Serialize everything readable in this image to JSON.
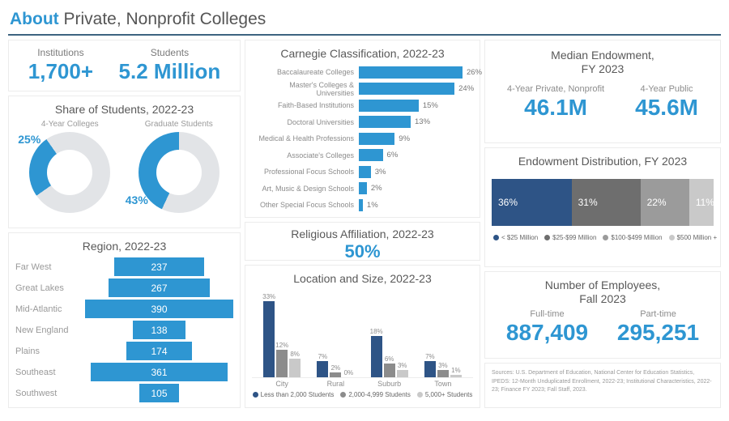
{
  "header": {
    "title_accent": "About",
    "title_rest": " Private, Nonprofit Colleges"
  },
  "colors": {
    "accent_blue": "#2E96D2",
    "navy": "#2E5486",
    "dark_gray": "#6E6E6E",
    "mid_gray": "#9B9B9B",
    "light_gray": "#C9C9C9",
    "donut_track": "#E2E4E7"
  },
  "kpis": {
    "institutions": {
      "label": "Institutions",
      "value": "1,700+"
    },
    "students": {
      "label": "Students",
      "value": "5.2 Million"
    }
  },
  "religious_affiliation": {
    "title": "Religious Affiliation, 2022-23",
    "value": "50%"
  },
  "median_endowment": {
    "title_line1": "Median Endowment,",
    "title_line2": "FY 2023",
    "items": [
      {
        "label": "4-Year Private, Nonprofit",
        "value": "46.1M"
      },
      {
        "label": "4-Year Public",
        "value": "45.6M"
      }
    ]
  },
  "employees": {
    "title_line1": "Number of Employees,",
    "title_line2": "Fall 2023",
    "items": [
      {
        "label": "Full-time",
        "value": "887,409"
      },
      {
        "label": "Part-time",
        "value": "295,251"
      }
    ]
  },
  "sources": "Sources: U.S. Department of Education, National Center for Education Statistics, IPEDS: 12-Month Unduplicated Enrollment, 2022-23; Institutional Characteristics, 2022-23; Finance FY 2023; Fall Staff, 2023.",
  "chart_data": [
    {
      "id": "share_of_students",
      "type": "pie",
      "title": "Share of Students, 2022-23",
      "donuts": [
        {
          "label": "4-Year Colleges",
          "value": 25,
          "display": "25%",
          "start_deg": 235,
          "label_pos": "tl"
        },
        {
          "label": "Graduate Students",
          "value": 43,
          "display": "43%",
          "start_deg": 205,
          "label_pos": "bl"
        }
      ]
    },
    {
      "id": "region",
      "type": "bar",
      "title": "Region, 2022-23",
      "orientation": "horizontal-centered-funnel",
      "categories": [
        "Far West",
        "Great Lakes",
        "Mid-Atlantic",
        "New England",
        "Plains",
        "Southeast",
        "Southwest"
      ],
      "values": [
        237,
        267,
        390,
        138,
        174,
        361,
        105
      ],
      "xmax": 390
    },
    {
      "id": "carnegie",
      "type": "bar",
      "title": "Carnegie Classification, 2022-23",
      "orientation": "horizontal",
      "categories": [
        "Baccalaureate Colleges",
        "Master's Colleges & Universities",
        "Faith-Based Institutions",
        "Doctoral Universities",
        "Medical & Health Professions",
        "Associate's Colleges",
        "Professional Focus Schools",
        "Art, Music & Design Schools",
        "Other Special Focus Schools"
      ],
      "values": [
        26,
        24,
        15,
        13,
        9,
        6,
        3,
        2,
        1
      ],
      "unit": "%",
      "xmax": 26
    },
    {
      "id": "location_size",
      "type": "bar",
      "title": "Location and Size, 2022-23",
      "orientation": "vertical-grouped",
      "categories": [
        "City",
        "Rural",
        "Suburb",
        "Town"
      ],
      "series": [
        {
          "name": "Less than 2,000 Students",
          "color": "#2E5486",
          "values": [
            33,
            7,
            18,
            7
          ]
        },
        {
          "name": "2,000-4,999 Students",
          "color": "#8C8C8C",
          "values": [
            12,
            2,
            6,
            3
          ]
        },
        {
          "name": "5,000+ Students",
          "color": "#C9C9C9",
          "values": [
            8,
            0,
            3,
            1
          ]
        }
      ],
      "unit": "%",
      "ymax": 35,
      "legend_position": "bottom"
    },
    {
      "id": "endowment_distribution",
      "type": "bar",
      "title": "Endowment Distribution, FY 2023",
      "orientation": "stacked-horizontal",
      "segments": [
        {
          "name": "< $25 Million",
          "value": 36,
          "display": "36%",
          "color": "#2E5486"
        },
        {
          "name": "$25-$99 Million",
          "value": 31,
          "display": "31%",
          "color": "#6E6E6E"
        },
        {
          "name": "$100-$499 Million",
          "value": 22,
          "display": "22%",
          "color": "#9B9B9B"
        },
        {
          "name": "$500 Million +",
          "value": 11,
          "display": "11%",
          "color": "#C9C9C9"
        }
      ],
      "legend_position": "bottom"
    }
  ]
}
